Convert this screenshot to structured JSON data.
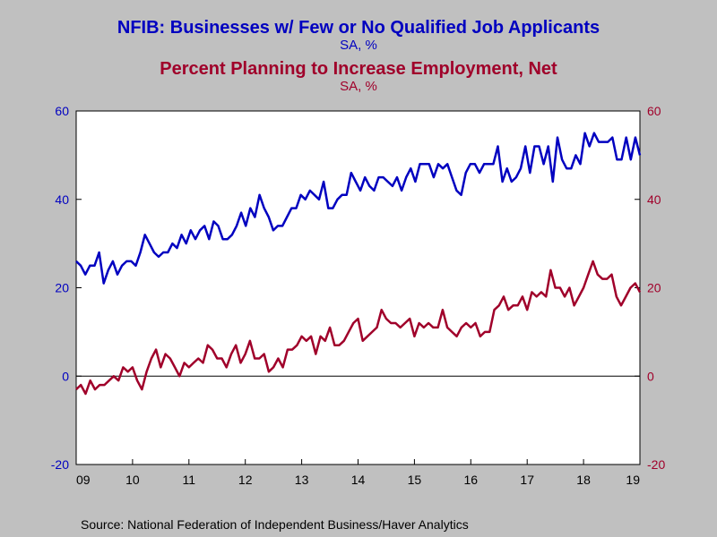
{
  "titles": {
    "title1": "NFIB: Businesses w/ Few or No Qualified Job Applicants",
    "subtitle1": "SA, %",
    "title2": "Percent Planning to Increase Employment, Net",
    "subtitle2": "SA, %"
  },
  "source": "Source:  National Federation of Independent Business/Haver Analytics",
  "colors": {
    "series1": "#0000c0",
    "series2": "#a0002a",
    "plot_bg": "#ffffff",
    "page_bg": "#c0c0c0"
  },
  "chart_data": {
    "type": "line",
    "x_tick_labels": [
      "09",
      "10",
      "11",
      "12",
      "13",
      "14",
      "15",
      "16",
      "17",
      "18",
      "19"
    ],
    "x_range": [
      2009.0,
      2019.0
    ],
    "ylim_left": [
      -20,
      60
    ],
    "ylim_right": [
      -20,
      60
    ],
    "y_ticks_left": [
      "-20",
      "0",
      "20",
      "40",
      "60"
    ],
    "y_ticks_right": [
      "-20",
      "0",
      "20",
      "40",
      "60"
    ],
    "zero_line": true,
    "grid": false,
    "series": [
      {
        "name": "NFIB: Businesses w/ Few or No Qualified Job Applicants",
        "axis": "left",
        "values": [
          26,
          25,
          23,
          25,
          25,
          28,
          21,
          24,
          26,
          23,
          25,
          26,
          26,
          25,
          28,
          32,
          30,
          28,
          27,
          28,
          28,
          30,
          29,
          32,
          30,
          33,
          31,
          33,
          34,
          31,
          35,
          34,
          31,
          31,
          32,
          34,
          37,
          34,
          38,
          36,
          41,
          38,
          36,
          33,
          34,
          34,
          36,
          38,
          38,
          41,
          40,
          42,
          41,
          40,
          44,
          38,
          38,
          40,
          41,
          41,
          46,
          44,
          42,
          45,
          43,
          42,
          45,
          45,
          44,
          43,
          45,
          42,
          45,
          47,
          44,
          48,
          48,
          48,
          45,
          48,
          47,
          48,
          45,
          42,
          41,
          46,
          48,
          48,
          46,
          48,
          48,
          48,
          52,
          44,
          47,
          44,
          45,
          47,
          52,
          46,
          52,
          52,
          48,
          52,
          44,
          54,
          49,
          47,
          47,
          50,
          48,
          55,
          52,
          55,
          53,
          53,
          53,
          54,
          49,
          49,
          54,
          49,
          54,
          50
        ]
      },
      {
        "name": "Percent Planning to Increase Employment, Net",
        "axis": "right",
        "values": [
          -3,
          -2,
          -4,
          -1,
          -3,
          -2,
          -2,
          -1,
          0,
          -1,
          2,
          1,
          2,
          -1,
          -3,
          1,
          4,
          6,
          2,
          5,
          4,
          2,
          0,
          3,
          2,
          3,
          4,
          3,
          7,
          6,
          4,
          4,
          2,
          5,
          7,
          3,
          5,
          8,
          4,
          4,
          5,
          1,
          2,
          4,
          2,
          6,
          6,
          7,
          9,
          8,
          9,
          5,
          9,
          8,
          11,
          7,
          7,
          8,
          10,
          12,
          13,
          8,
          9,
          10,
          11,
          15,
          13,
          12,
          12,
          11,
          12,
          13,
          9,
          12,
          11,
          12,
          11,
          11,
          15,
          11,
          10,
          9,
          11,
          12,
          11,
          12,
          9,
          10,
          10,
          15,
          16,
          18,
          15,
          16,
          16,
          18,
          15,
          19,
          18,
          19,
          18,
          24,
          20,
          20,
          18,
          20,
          16,
          18,
          20,
          23,
          26,
          23,
          22,
          22,
          23,
          18,
          16,
          18,
          20,
          21,
          19
        ]
      }
    ]
  }
}
